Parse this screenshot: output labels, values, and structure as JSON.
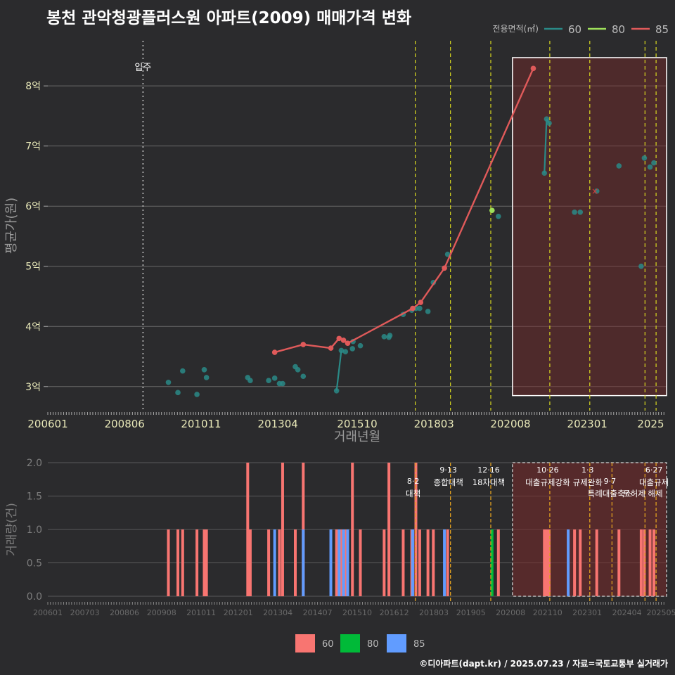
{
  "title": "봉천 관악청광플러스원 아파트(2009) 매매가격 변화",
  "footer": "©디아파트(dapt.kr) / 2025.07.23 / 자료=국토교통부 실거래가",
  "colors": {
    "bg": "#2b2b2d",
    "s60": "#2a8a87",
    "s80": "#9ee05a",
    "s85": "#e05a5a",
    "b60": "#f87571",
    "b80": "#00ba38",
    "b85": "#619cff"
  },
  "chart_data": [
    {
      "type": "line",
      "title": "봉천 관악청광플러스원 아파트(2009) 매매가격 변화",
      "xlabel": "거래년월",
      "ylabel": "평균가(원)",
      "xlim": [
        2006.0,
        2025.5
      ],
      "ylim": [
        2.6,
        8.75
      ],
      "xticks": [
        {
          "v": 2006.0,
          "label": "200601"
        },
        {
          "v": 2008.42,
          "label": "200806"
        },
        {
          "v": 2010.83,
          "label": "201011"
        },
        {
          "v": 2013.25,
          "label": "201304"
        },
        {
          "v": 2015.75,
          "label": "201510"
        },
        {
          "v": 2018.17,
          "label": "201803"
        },
        {
          "v": 2020.58,
          "label": "202008"
        },
        {
          "v": 2023.0,
          "label": "202301"
        },
        {
          "v": 2025.0,
          "label": "2025"
        }
      ],
      "yticks": [
        {
          "v": 3,
          "label": "3억"
        },
        {
          "v": 4,
          "label": "4억"
        },
        {
          "v": 5,
          "label": "5억"
        },
        {
          "v": 6,
          "label": "6억"
        },
        {
          "v": 7,
          "label": "7억"
        },
        {
          "v": 8,
          "label": "8억"
        }
      ],
      "legend": {
        "title": "전용면적(㎡)",
        "position": "top-right",
        "items": [
          "60",
          "80",
          "85"
        ]
      },
      "annotations": [
        {
          "x": 2009.0,
          "label": "입주"
        }
      ],
      "policy_lines": [
        2017.58,
        2018.69,
        2019.96,
        2021.82,
        2023.08,
        2024.82,
        2025.17
      ],
      "highlight_range": [
        2020.6,
        2025.5
      ],
      "series": [
        {
          "name": "60",
          "points": [
            [
              2009.8,
              3.07
            ],
            [
              2010.1,
              2.9
            ],
            [
              2010.25,
              3.26
            ],
            [
              2010.7,
              2.87
            ],
            [
              2010.93,
              3.28
            ],
            [
              2011.0,
              3.15
            ],
            [
              2012.3,
              3.15
            ],
            [
              2012.38,
              3.1
            ],
            [
              2012.96,
              3.1
            ],
            [
              2013.15,
              3.14
            ],
            [
              2013.3,
              3.05
            ],
            [
              2013.4,
              3.05
            ],
            [
              2013.8,
              3.33
            ],
            [
              2013.88,
              3.28
            ],
            [
              2014.05,
              3.17
            ],
            [
              2015.1,
              2.93
            ],
            [
              2015.25,
              3.6
            ],
            [
              2015.38,
              3.58
            ],
            [
              2015.6,
              3.63
            ],
            [
              2015.62,
              3.75
            ],
            [
              2015.85,
              3.68
            ],
            [
              2016.6,
              3.83
            ],
            [
              2016.75,
              3.82
            ],
            [
              2016.78,
              3.85
            ],
            [
              2017.2,
              4.2
            ],
            [
              2017.47,
              4.27
            ],
            [
              2017.6,
              4.3
            ],
            [
              2017.72,
              4.3
            ],
            [
              2017.98,
              4.25
            ],
            [
              2018.15,
              4.73
            ],
            [
              2018.6,
              5.2
            ],
            [
              2020.2,
              5.83
            ],
            [
              2021.65,
              6.55
            ],
            [
              2021.72,
              7.45
            ],
            [
              2021.8,
              7.38
            ],
            [
              2022.6,
              5.9
            ],
            [
              2022.78,
              5.9
            ],
            [
              2023.3,
              6.25
            ],
            [
              2024.0,
              6.67
            ],
            [
              2024.7,
              5.0
            ],
            [
              2024.8,
              6.8
            ],
            [
              2024.98,
              6.65
            ],
            [
              2025.1,
              6.72
            ]
          ]
        },
        {
          "name": "80",
          "points": [
            [
              2020.0,
              5.93
            ]
          ]
        },
        {
          "name": "85",
          "points": [
            [
              2013.15,
              3.57
            ],
            [
              2014.05,
              3.7
            ],
            [
              2014.92,
              3.64
            ],
            [
              2015.18,
              3.8
            ],
            [
              2015.32,
              3.77
            ],
            [
              2015.45,
              3.72
            ],
            [
              2017.5,
              4.3
            ],
            [
              2017.75,
              4.4
            ],
            [
              2018.5,
              4.97
            ],
            [
              2021.3,
              8.29
            ]
          ]
        }
      ]
    },
    {
      "type": "bar",
      "ylabel": "거래량(건)",
      "ylim": [
        0,
        2.0
      ],
      "yticks": [
        {
          "v": 0,
          "label": "0.0"
        },
        {
          "v": 0.5,
          "label": "0.5"
        },
        {
          "v": 1.0,
          "label": "1.0"
        },
        {
          "v": 1.5,
          "label": "1.5"
        },
        {
          "v": 2.0,
          "label": "2.0"
        }
      ],
      "xticks": [
        "200601",
        "200703",
        "200806",
        "200908",
        "201011",
        "201201",
        "201304",
        "201407",
        "201510",
        "201612",
        "201803",
        "201905",
        "202008",
        "202110",
        "202301",
        "202404",
        "202505"
      ],
      "policies": [
        {
          "x": 2017.58,
          "date": "8·2",
          "label": "대책",
          "yrow": 1
        },
        {
          "x": 2018.69,
          "date": "9·13",
          "label": "종합대책",
          "yrow": 0
        },
        {
          "x": 2019.96,
          "date": "12·16",
          "label": "18차대책",
          "yrow": 0
        },
        {
          "x": 2021.82,
          "date": "10·26",
          "label": "대출규제강화",
          "yrow": 0
        },
        {
          "x": 2023.08,
          "date": "1·3",
          "label": "규제완화",
          "yrow": 0
        },
        {
          "x": 2023.78,
          "date": "9·7",
          "label": "특례대출축소",
          "yrow": 1
        },
        {
          "x": 2024.82,
          "date": "",
          "label": "토허제 해제",
          "yrow": 1
        },
        {
          "x": 2025.17,
          "date": "6·27",
          "label": "대출규제",
          "yrow": 0
        }
      ],
      "series": [
        {
          "name": "60",
          "points": [
            [
              2009.8,
              1
            ],
            [
              2010.1,
              1
            ],
            [
              2010.25,
              1
            ],
            [
              2010.7,
              1
            ],
            [
              2010.93,
              1
            ],
            [
              2011.0,
              1
            ],
            [
              2012.3,
              2
            ],
            [
              2012.38,
              1
            ],
            [
              2012.96,
              1
            ],
            [
              2013.3,
              1
            ],
            [
              2013.4,
              2
            ],
            [
              2013.8,
              1
            ],
            [
              2014.05,
              2
            ],
            [
              2015.1,
              1
            ],
            [
              2015.25,
              1
            ],
            [
              2015.38,
              1
            ],
            [
              2015.6,
              2
            ],
            [
              2015.85,
              1
            ],
            [
              2016.6,
              1
            ],
            [
              2016.75,
              2
            ],
            [
              2017.2,
              1
            ],
            [
              2017.47,
              1
            ],
            [
              2017.6,
              2
            ],
            [
              2017.72,
              1
            ],
            [
              2017.98,
              1
            ],
            [
              2018.15,
              1
            ],
            [
              2018.6,
              1
            ],
            [
              2020.2,
              1
            ],
            [
              2021.65,
              1
            ],
            [
              2021.72,
              1
            ],
            [
              2021.8,
              1
            ],
            [
              2022.6,
              1
            ],
            [
              2022.78,
              1
            ],
            [
              2023.3,
              1
            ],
            [
              2024.0,
              1
            ],
            [
              2024.7,
              1
            ],
            [
              2024.8,
              1
            ],
            [
              2024.98,
              1
            ],
            [
              2025.1,
              1
            ]
          ]
        },
        {
          "name": "80",
          "points": [
            [
              2020.0,
              1
            ]
          ]
        },
        {
          "name": "85",
          "points": [
            [
              2013.15,
              1
            ],
            [
              2014.05,
              1
            ],
            [
              2014.92,
              1
            ],
            [
              2015.18,
              1
            ],
            [
              2015.32,
              1
            ],
            [
              2015.45,
              1
            ],
            [
              2017.5,
              1
            ],
            [
              2018.5,
              1
            ],
            [
              2022.4,
              1
            ]
          ]
        }
      ]
    }
  ]
}
